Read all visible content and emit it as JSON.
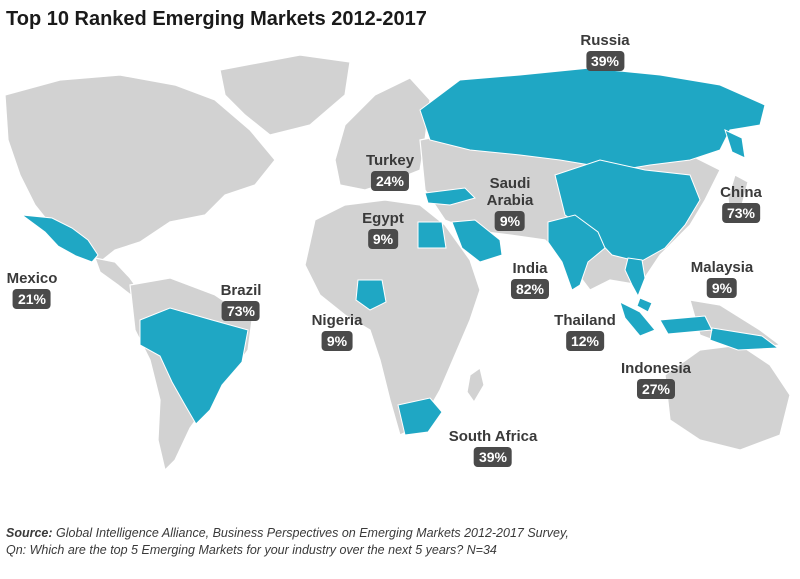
{
  "title": "Top 10 Ranked Emerging Markets 2012-2017",
  "colors": {
    "highlight": "#1fa7c4",
    "land": "#d2d2d2",
    "badge": "#4a4a4a"
  },
  "markets": [
    {
      "key": "russia",
      "name": "Russia",
      "value": "39%"
    },
    {
      "key": "turkey",
      "name": "Turkey",
      "value": "24%"
    },
    {
      "key": "saudi",
      "name": "Saudi\nArabia",
      "value": "9%"
    },
    {
      "key": "egypt",
      "name": "Egypt",
      "value": "9%"
    },
    {
      "key": "china",
      "name": "China",
      "value": "73%"
    },
    {
      "key": "mexico",
      "name": "Mexico",
      "value": "21%"
    },
    {
      "key": "brazil",
      "name": "Brazil",
      "value": "73%"
    },
    {
      "key": "nigeria",
      "name": "Nigeria",
      "value": "9%"
    },
    {
      "key": "india",
      "name": "India",
      "value": "82%"
    },
    {
      "key": "malaysia",
      "name": "Malaysia",
      "value": "9%"
    },
    {
      "key": "thailand",
      "name": "Thailand",
      "value": "12%"
    },
    {
      "key": "indonesia",
      "name": "Indonesia",
      "value": "27%"
    },
    {
      "key": "southafrica",
      "name": "South Africa",
      "value": "39%"
    }
  ],
  "source": {
    "label": "Source:",
    "line1": " Global Intelligence Alliance, Business Perspectives on Emerging Markets 2012-2017 Survey,",
    "line2": "Qn: Which are the top 5 Emerging Markets for your industry over the next 5 years? N=34"
  }
}
